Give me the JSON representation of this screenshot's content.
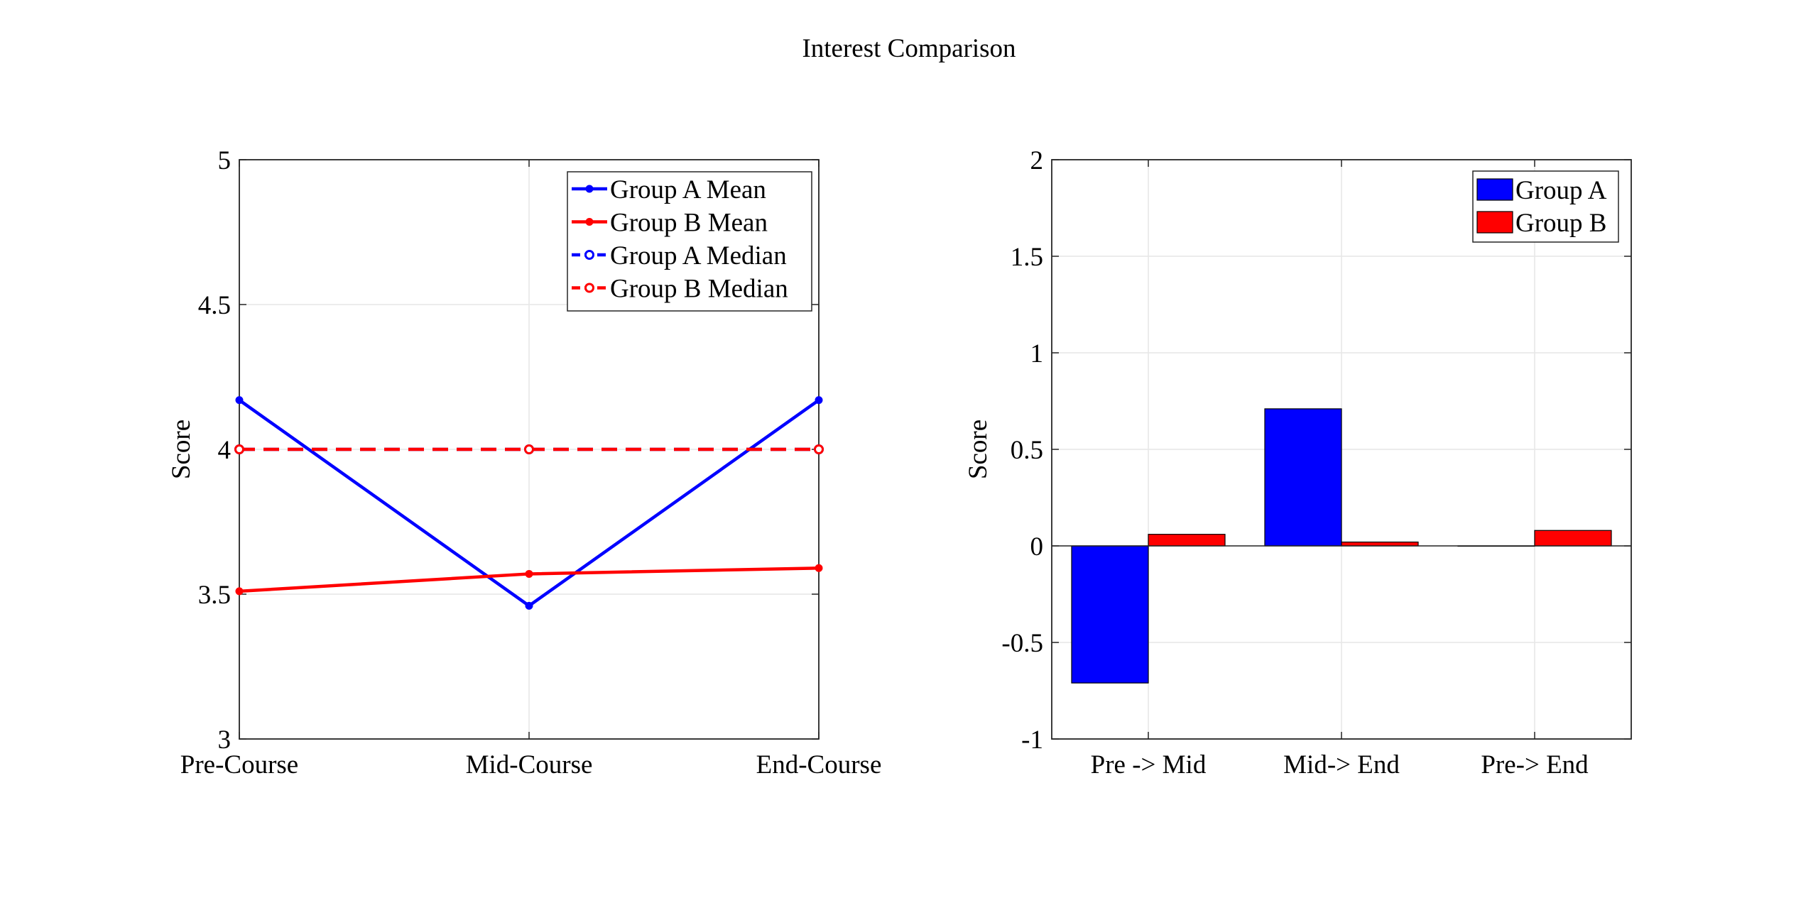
{
  "figure_title": "Interest Comparison",
  "chart_data": [
    {
      "type": "line",
      "categories": [
        "Pre-Course",
        "Mid-Course",
        "End-Course"
      ],
      "ylabel": "Score",
      "ylim": [
        3,
        5
      ],
      "yticks": [
        "3",
        "3.5",
        "4",
        "4.5",
        "5"
      ],
      "grid": true,
      "legend_position": "top-right",
      "series": [
        {
          "name": "Group A Mean",
          "values": [
            4.17,
            3.46,
            4.17
          ],
          "color": "#0000ff",
          "dashed": false,
          "marker": "filled"
        },
        {
          "name": "Group B Mean",
          "values": [
            3.51,
            3.57,
            3.59
          ],
          "color": "#ff0000",
          "dashed": false,
          "marker": "filled"
        },
        {
          "name": "Group A Median",
          "values": [
            4,
            4,
            4
          ],
          "color": "#0000ff",
          "dashed": true,
          "marker": "open"
        },
        {
          "name": "Group B Median",
          "values": [
            4,
            4,
            4
          ],
          "color": "#ff0000",
          "dashed": true,
          "marker": "open"
        }
      ]
    },
    {
      "type": "bar",
      "categories": [
        "Pre -> Mid",
        "Mid-> End",
        "Pre-> End"
      ],
      "ylabel": "Score",
      "ylim": [
        -1,
        2
      ],
      "yticks": [
        "-1",
        "-0.5",
        "0",
        "0.5",
        "1",
        "1.5",
        "2"
      ],
      "grid": true,
      "legend_position": "top-right",
      "series": [
        {
          "name": "Group A",
          "values": [
            -0.71,
            0.71,
            0
          ],
          "color": "#0000ff"
        },
        {
          "name": "Group B",
          "values": [
            0.06,
            0.02,
            0.08
          ],
          "color": "#ff0000"
        }
      ]
    }
  ]
}
